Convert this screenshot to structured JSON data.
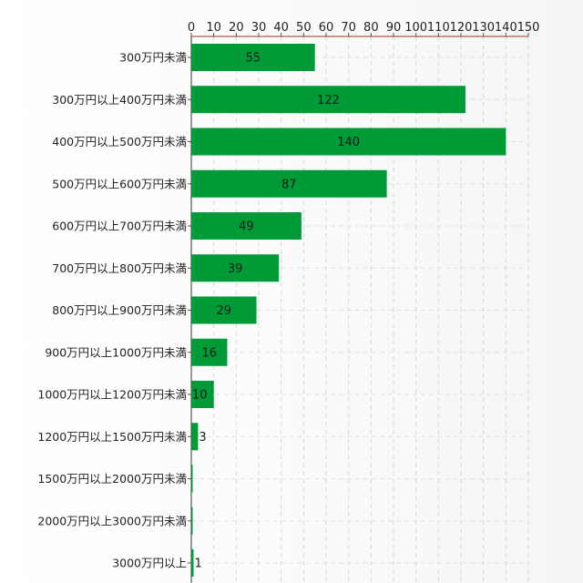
{
  "chart_data": {
    "type": "bar",
    "orientation": "horizontal",
    "title": "",
    "xlabel": "",
    "ylabel": "",
    "x_axis_position": "top",
    "xlim": [
      0,
      150
    ],
    "x_ticks": [
      0,
      10,
      20,
      30,
      40,
      50,
      60,
      70,
      80,
      90,
      100,
      110,
      120,
      130,
      140,
      150
    ],
    "grid": true,
    "legend": "none",
    "bar_color": "#009a36",
    "categories": [
      "300万円未満",
      "300万円以上400万円未満",
      "400万円以上500万円未満",
      "500万円以上600万円未満",
      "600万円以上700万円未満",
      "700万円以上800万円未満",
      "800万円以上900万円未満",
      "900万円以上1000万円未満",
      "1000万円以上1200万円未満",
      "1200万円以上1500万円未満",
      "1500万円以上2000万円未満",
      "2000万円以上3000万円未満",
      "3000万円以上"
    ],
    "values": [
      55,
      122,
      140,
      87,
      49,
      39,
      29,
      16,
      10,
      3,
      0,
      0,
      1
    ],
    "data_labels": [
      "55",
      "122",
      "140",
      "87",
      "49",
      "39",
      "29",
      "16",
      "10",
      "3",
      "",
      "",
      "1"
    ]
  }
}
